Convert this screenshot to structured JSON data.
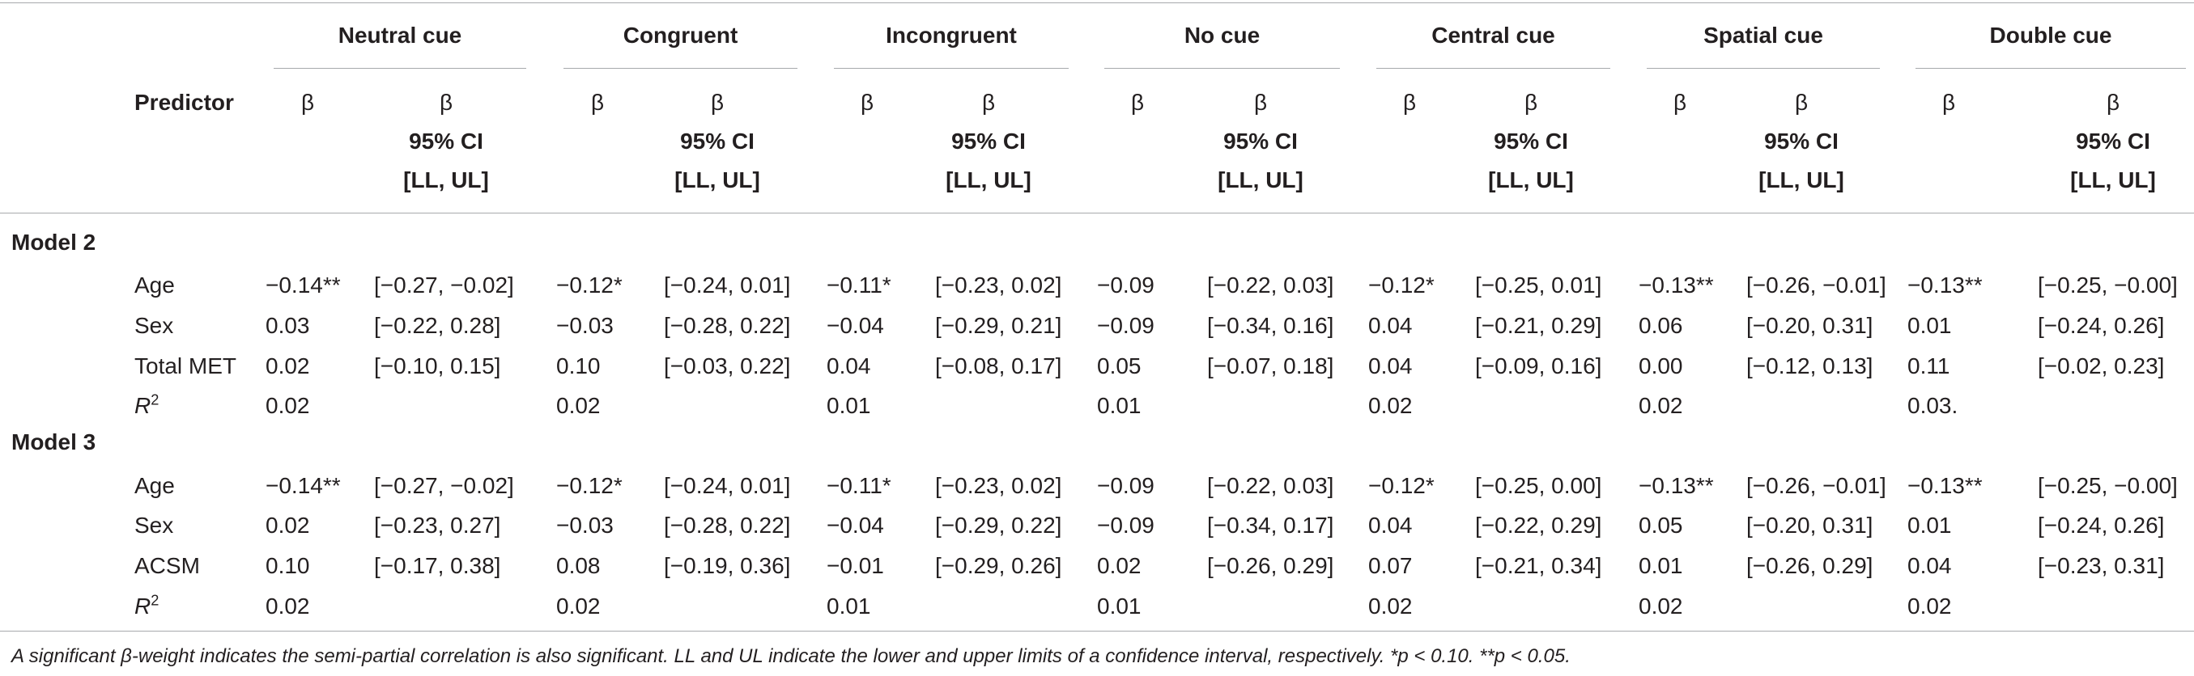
{
  "header": {
    "predictor_label": "Predictor",
    "groups": [
      "Neutral cue",
      "Congruent",
      "Incongruent",
      "No cue",
      "Central cue",
      "Spatial cue",
      "Double cue"
    ],
    "beta_label": "β",
    "ci_label_line1": "β",
    "ci_label_line2": "95% CI",
    "ci_label_line3": "[LL, UL]"
  },
  "models": [
    {
      "label": "Model 2",
      "rows": [
        {
          "predictor": "Age",
          "cells": [
            [
              "−0.14**",
              "[−0.27, −0.02]"
            ],
            [
              "−0.12*",
              "[−0.24, 0.01]"
            ],
            [
              "−0.11*",
              "[−0.23, 0.02]"
            ],
            [
              "−0.09",
              "[−0.22, 0.03]"
            ],
            [
              "−0.12*",
              "[−0.25, 0.01]"
            ],
            [
              "−0.13**",
              "[−0.26, −0.01]"
            ],
            [
              "−0.13**",
              "[−0.25, −0.00]"
            ]
          ]
        },
        {
          "predictor": "Sex",
          "cells": [
            [
              "0.03",
              "[−0.22, 0.28]"
            ],
            [
              "−0.03",
              "[−0.28, 0.22]"
            ],
            [
              "−0.04",
              "[−0.29, 0.21]"
            ],
            [
              "−0.09",
              "[−0.34, 0.16]"
            ],
            [
              "0.04",
              "[−0.21, 0.29]"
            ],
            [
              "0.06",
              "[−0.20, 0.31]"
            ],
            [
              "0.01",
              "[−0.24, 0.26]"
            ]
          ]
        },
        {
          "predictor": "Total MET",
          "cells": [
            [
              "0.02",
              "[−0.10, 0.15]"
            ],
            [
              "0.10",
              "[−0.03, 0.22]"
            ],
            [
              "0.04",
              "[−0.08, 0.17]"
            ],
            [
              "0.05",
              "[−0.07, 0.18]"
            ],
            [
              "0.04",
              "[−0.09, 0.16]"
            ],
            [
              "0.00",
              "[−0.12, 0.13]"
            ],
            [
              "0.11",
              "[−0.02, 0.23]"
            ]
          ]
        },
        {
          "predictor": "R2",
          "cells": [
            [
              "0.02",
              ""
            ],
            [
              "0.02",
              ""
            ],
            [
              "0.01",
              ""
            ],
            [
              "0.01",
              ""
            ],
            [
              "0.02",
              ""
            ],
            [
              "0.02",
              ""
            ],
            [
              "0.03.",
              ""
            ]
          ]
        }
      ]
    },
    {
      "label": "Model 3",
      "rows": [
        {
          "predictor": "Age",
          "cells": [
            [
              "−0.14**",
              "[−0.27, −0.02]"
            ],
            [
              "−0.12*",
              "[−0.24, 0.01]"
            ],
            [
              "−0.11*",
              "[−0.23, 0.02]"
            ],
            [
              "−0.09",
              "[−0.22, 0.03]"
            ],
            [
              "−0.12*",
              "[−0.25, 0.00]"
            ],
            [
              "−0.13**",
              "[−0.26, −0.01]"
            ],
            [
              "−0.13**",
              "[−0.25, −0.00]"
            ]
          ]
        },
        {
          "predictor": "Sex",
          "cells": [
            [
              "0.02",
              "[−0.23, 0.27]"
            ],
            [
              "−0.03",
              "[−0.28, 0.22]"
            ],
            [
              "−0.04",
              "[−0.29, 0.22]"
            ],
            [
              "−0.09",
              "[−0.34, 0.17]"
            ],
            [
              "0.04",
              "[−0.22, 0.29]"
            ],
            [
              "0.05",
              "[−0.20, 0.31]"
            ],
            [
              "0.01",
              "[−0.24, 0.26]"
            ]
          ]
        },
        {
          "predictor": "ACSM",
          "cells": [
            [
              "0.10",
              "[−0.17, 0.38]"
            ],
            [
              "0.08",
              "[−0.19, 0.36]"
            ],
            [
              "−0.01",
              "[−0.29, 0.26]"
            ],
            [
              "0.02",
              "[−0.26, 0.29]"
            ],
            [
              "0.07",
              "[−0.21, 0.34]"
            ],
            [
              "0.01",
              "[−0.26, 0.29]"
            ],
            [
              "0.04",
              "[−0.23, 0.31]"
            ]
          ]
        },
        {
          "predictor": "R2",
          "cells": [
            [
              "0.02",
              ""
            ],
            [
              "0.02",
              ""
            ],
            [
              "0.01",
              ""
            ],
            [
              "0.01",
              ""
            ],
            [
              "0.02",
              ""
            ],
            [
              "0.02",
              ""
            ],
            [
              "0.02",
              ""
            ]
          ]
        }
      ]
    }
  ],
  "footnote": "A significant β-weight indicates the semi-partial correlation is also significant. LL and UL indicate the lower and upper limits of a confidence interval, respectively. *p < 0.10. **p < 0.05."
}
